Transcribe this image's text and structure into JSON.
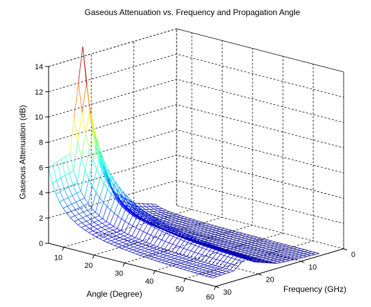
{
  "chart_data": {
    "type": "surface-mesh",
    "title": "Gaseous Attenuation vs. Frequency and Propagation Angle",
    "xlabel": "Angle (Degree)",
    "ylabel": "Frequency (GHz)",
    "zlabel": "Gaseous Attenuation (dB)",
    "x_range": [
      5,
      60
    ],
    "y_range": [
      0,
      30
    ],
    "z_range": [
      0,
      14
    ],
    "x_ticks": [
      10,
      20,
      30,
      40,
      50,
      60
    ],
    "y_ticks": [
      0,
      10,
      20,
      30
    ],
    "z_ticks": [
      0,
      2,
      4,
      6,
      8,
      10,
      12,
      14
    ],
    "grid": true,
    "colormap": "jet",
    "surface": {
      "angle_min": 5,
      "angle_max": 60,
      "angle_step": 1.2,
      "frequency_min": 5,
      "frequency_max": 30,
      "frequency_step": 1,
      "peak": {
        "angle": 5,
        "frequency": 22,
        "attenuation": 14.8
      },
      "baseline_at_angle_5": [
        {
          "frequency": 5,
          "attenuation": 0.6
        },
        {
          "frequency": 10,
          "attenuation": 1.2
        },
        {
          "frequency": 15,
          "attenuation": 2.6
        },
        {
          "frequency": 20,
          "attenuation": 8.5
        },
        {
          "frequency": 22,
          "attenuation": 14.8
        },
        {
          "frequency": 25,
          "attenuation": 6.6
        },
        {
          "frequency": 30,
          "attenuation": 6.0
        }
      ]
    }
  }
}
